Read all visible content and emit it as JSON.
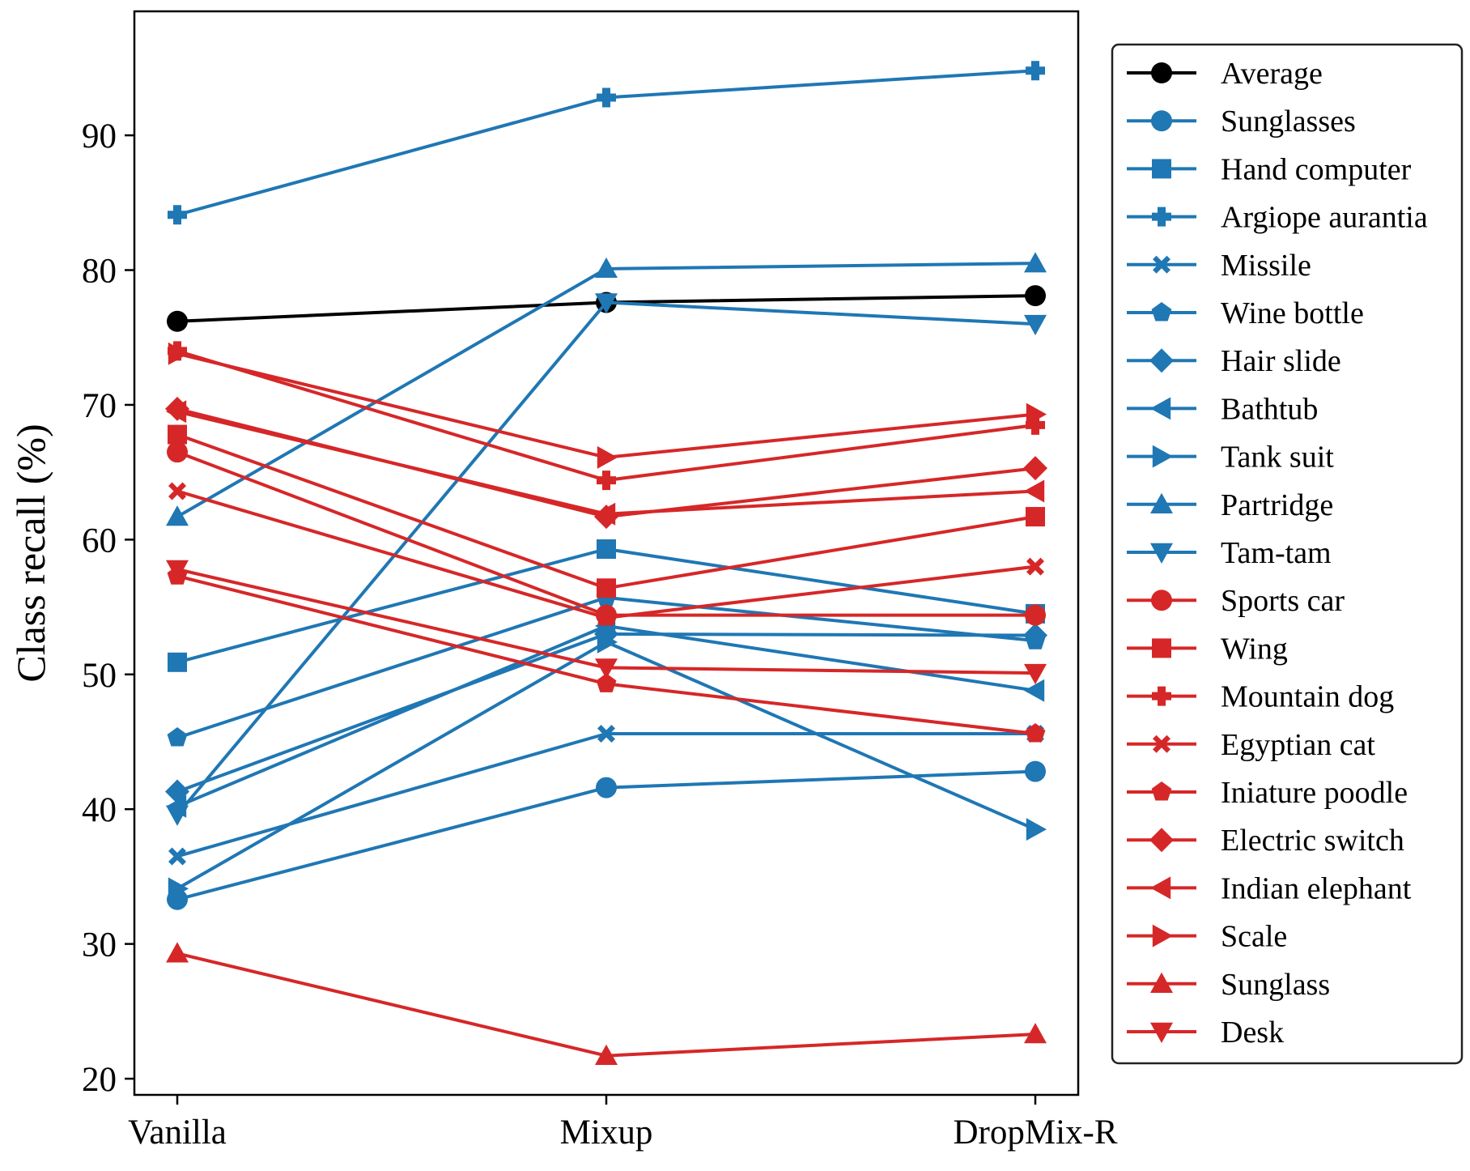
{
  "chart_data": {
    "type": "line",
    "categories": [
      "Vanilla",
      "Mixup",
      "DropMix-R"
    ],
    "title": "",
    "xlabel": "",
    "ylabel": "Class recall (%)",
    "ylim": [
      18.8,
      99.2
    ],
    "yticks": [
      20,
      30,
      40,
      50,
      60,
      70,
      80,
      90
    ],
    "grid": false,
    "legend_position": "right",
    "series": [
      {
        "name": "Average",
        "color": "#000000",
        "marker": "circle",
        "values": [
          76.2,
          77.6,
          78.1
        ]
      },
      {
        "name": "Sunglasses",
        "color": "#1f77b4",
        "marker": "circle",
        "values": [
          33.3,
          41.6,
          42.8
        ]
      },
      {
        "name": "Hand computer",
        "color": "#1f77b4",
        "marker": "square",
        "values": [
          50.9,
          59.3,
          54.5
        ]
      },
      {
        "name": "Argiope aurantia",
        "color": "#1f77b4",
        "marker": "plus",
        "values": [
          84.1,
          92.8,
          94.8
        ]
      },
      {
        "name": "Missile",
        "color": "#1f77b4",
        "marker": "x",
        "values": [
          36.5,
          45.6,
          45.6
        ]
      },
      {
        "name": "Wine bottle",
        "color": "#1f77b4",
        "marker": "pentagon",
        "values": [
          45.3,
          55.7,
          52.5
        ]
      },
      {
        "name": "Hair slide",
        "color": "#1f77b4",
        "marker": "diamond",
        "values": [
          41.3,
          53.0,
          52.9
        ]
      },
      {
        "name": "Bathtub",
        "color": "#1f77b4",
        "marker": "triangle-left",
        "values": [
          40.2,
          53.6,
          48.8
        ]
      },
      {
        "name": "Tank suit",
        "color": "#1f77b4",
        "marker": "triangle-right",
        "values": [
          34.1,
          52.4,
          38.5
        ]
      },
      {
        "name": "Partridge",
        "color": "#1f77b4",
        "marker": "triangle-up",
        "values": [
          61.7,
          80.1,
          80.5
        ]
      },
      {
        "name": "Tam-tam",
        "color": "#1f77b4",
        "marker": "triangle-down",
        "values": [
          39.6,
          77.6,
          76.0
        ]
      },
      {
        "name": "Sports car",
        "color": "#d62728",
        "marker": "circle",
        "values": [
          66.5,
          54.4,
          54.4
        ]
      },
      {
        "name": "Wing",
        "color": "#d62728",
        "marker": "square",
        "values": [
          67.8,
          56.4,
          61.7
        ]
      },
      {
        "name": "Mountain dog",
        "color": "#d62728",
        "marker": "plus",
        "values": [
          74.0,
          64.4,
          68.5
        ]
      },
      {
        "name": "Egyptian cat",
        "color": "#d62728",
        "marker": "x",
        "values": [
          63.6,
          54.2,
          58.0
        ]
      },
      {
        "name": "Iniature poodle",
        "color": "#d62728",
        "marker": "pentagon",
        "values": [
          57.3,
          49.3,
          45.6
        ]
      },
      {
        "name": "Electric switch",
        "color": "#d62728",
        "marker": "diamond",
        "values": [
          69.7,
          61.7,
          65.3
        ]
      },
      {
        "name": "Indian elephant",
        "color": "#d62728",
        "marker": "triangle-left",
        "values": [
          69.5,
          61.9,
          63.6
        ]
      },
      {
        "name": "Scale",
        "color": "#d62728",
        "marker": "triangle-right",
        "values": [
          73.8,
          66.1,
          69.3
        ]
      },
      {
        "name": "Sunglass",
        "color": "#d62728",
        "marker": "triangle-up",
        "values": [
          29.3,
          21.7,
          23.3
        ]
      },
      {
        "name": "Desk",
        "color": "#d62728",
        "marker": "triangle-down",
        "values": [
          57.8,
          50.5,
          50.1
        ]
      }
    ]
  }
}
